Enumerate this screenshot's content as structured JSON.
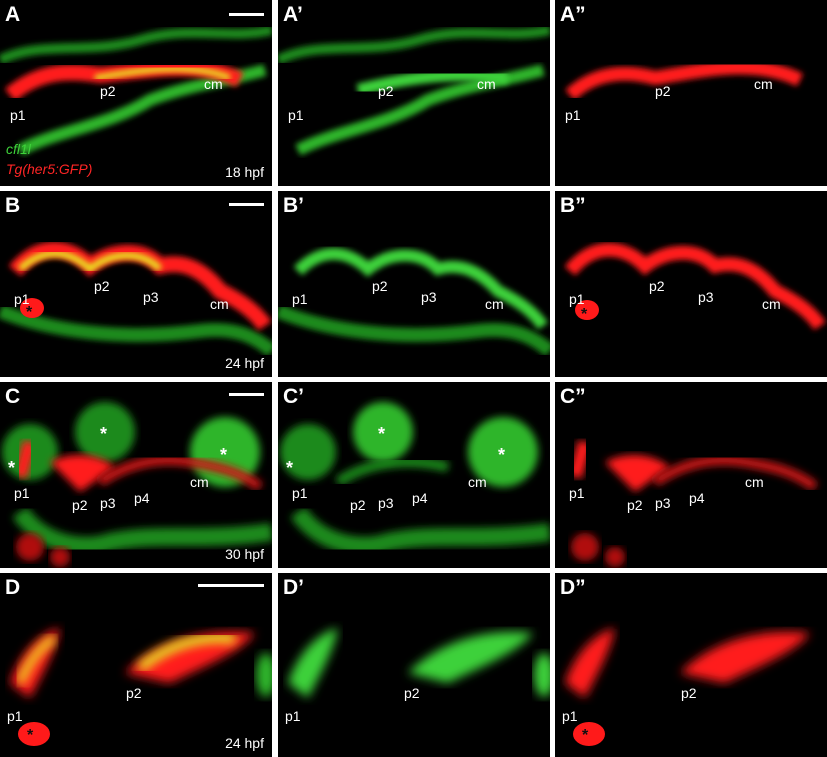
{
  "colors": {
    "green": "#2fd12a",
    "red": "#ff1a1a",
    "yellow": "#e8e020",
    "background": "#000000",
    "text": "#ffffff"
  },
  "row_a": {
    "panels": [
      "A",
      "A’",
      "A”"
    ],
    "stage": "18 hpf",
    "legend": {
      "green_label": "cfl1l",
      "red_label": "Tg(her5:GFP)"
    },
    "labels": {
      "p1": "p1",
      "p2": "p2",
      "cm": "cm"
    }
  },
  "row_b": {
    "panels": [
      "B",
      "B’",
      "B”"
    ],
    "stage": "24 hpf",
    "labels": {
      "p1": "p1",
      "p2": "p2",
      "p3": "p3",
      "cm": "cm"
    },
    "marker": "*"
  },
  "row_c": {
    "panels": [
      "C",
      "C’",
      "C”"
    ],
    "stage": "30 hpf",
    "labels": {
      "p1": "p1",
      "p2": "p2",
      "p3": "p3",
      "p4": "p4",
      "cm": "cm"
    },
    "marker": "*"
  },
  "row_d": {
    "panels": [
      "D",
      "D’",
      "D”"
    ],
    "stage": "24 hpf",
    "labels": {
      "p1": "p1",
      "p2": "p2"
    },
    "marker": "*"
  }
}
